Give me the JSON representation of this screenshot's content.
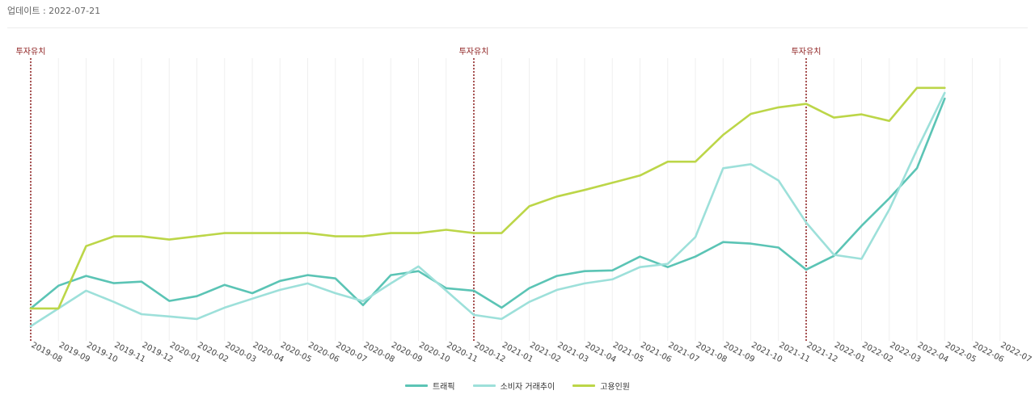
{
  "header": {
    "update_text": "업데이트 : 2022-07-21"
  },
  "chart_data": {
    "type": "line",
    "title": "",
    "xlabel": "",
    "ylabel": "",
    "ylim": [
      0,
      100
    ],
    "grid": "vertical",
    "legend": "bottom-center",
    "x": [
      "2019-08",
      "2019-09",
      "2019-10",
      "2019-11",
      "2019-12",
      "2020-01",
      "2020-02",
      "2020-03",
      "2020-04",
      "2020-05",
      "2020-06",
      "2020-07",
      "2020-08",
      "2020-09",
      "2020-10",
      "2020-11",
      "2020-12",
      "2021-01",
      "2021-02",
      "2021-03",
      "2021-04",
      "2021-05",
      "2021-06",
      "2021-07",
      "2021-08",
      "2021-09",
      "2021-10",
      "2021-11",
      "2021-12",
      "2022-01",
      "2022-02",
      "2022-03",
      "2022-04",
      "2022-05",
      "2022-06",
      "2022-07"
    ],
    "series": [
      {
        "name": "트래픽",
        "color": "#5bc4b5",
        "values": [
          12.3,
          21.4,
          25.3,
          22.4,
          23,
          15.3,
          17.2,
          21.7,
          18.4,
          23.3,
          25.6,
          24.3,
          13.6,
          25.6,
          27.2,
          20.4,
          19.4,
          12.6,
          20.4,
          25.3,
          27.2,
          27.5,
          33,
          28.8,
          33,
          38.8,
          38.2,
          36.6,
          27.8,
          33.3,
          45.3,
          56.3,
          68.3,
          96.1,
          null,
          null
        ]
      },
      {
        "name": "소비자 거래추이",
        "color": "#9de0da",
        "values": [
          5.2,
          12.3,
          19.4,
          14.9,
          10,
          9.1,
          8.1,
          12.6,
          16.2,
          19.7,
          22.3,
          18.4,
          15.2,
          22.3,
          29.1,
          19.4,
          9.7,
          8.1,
          14.9,
          19.7,
          22.3,
          23.9,
          28.8,
          30.1,
          40.8,
          68.3,
          69.9,
          63.4,
          46.6,
          33.7,
          32.1,
          51.8,
          75.7,
          98.4,
          null,
          null
        ]
      },
      {
        "name": "고용인원",
        "color": "#bcd648",
        "values": [
          12.3,
          12.3,
          37.2,
          41.1,
          41.1,
          39.8,
          41.1,
          42.4,
          42.4,
          42.4,
          42.4,
          41.1,
          41.1,
          42.4,
          42.4,
          43.7,
          42.4,
          42.4,
          53.1,
          57,
          59.6,
          62.5,
          65.4,
          70.9,
          70.9,
          81.6,
          90,
          92.6,
          94,
          88.5,
          89.8,
          87.2,
          100.4,
          100.4,
          null,
          null
        ]
      }
    ],
    "annotations": [
      {
        "label": "투자유치",
        "x": "2019-08",
        "color": "#8b1a1a"
      },
      {
        "label": "투자유치",
        "x": "2020-12",
        "color": "#8b1a1a"
      },
      {
        "label": "투자유치",
        "x": "2021-12",
        "color": "#8b1a1a"
      }
    ]
  }
}
